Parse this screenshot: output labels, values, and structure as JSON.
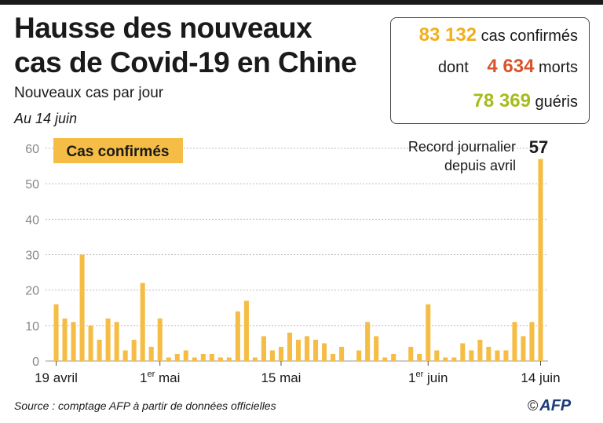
{
  "title": "Hausse des nouveaux\ncas de Covid-19 en Chine",
  "subtitle": "Nouveaux cas par jour",
  "date_note": "Au 14 juin",
  "stats": {
    "confirmed_value": "83 132",
    "confirmed_label": "cas confirmés",
    "deaths_prefix": "dont",
    "deaths_value": "4 634",
    "deaths_label": "morts",
    "recovered_value": "78 369",
    "recovered_label": "guéris"
  },
  "colors": {
    "bar": "#f5bd45",
    "confirmed": "#f2ae1c",
    "deaths": "#d9532c",
    "recovered": "#a7bb1c",
    "grid": "#bbbbbb",
    "text": "#1a1a1a"
  },
  "source": "Source : comptage AFP à partir de données officielles",
  "credit": "AFP",
  "chart_data": {
    "type": "bar",
    "legend": "Cas confirmés",
    "annotation": {
      "text": "Record journalier\ndepuis avril",
      "value_label": "57"
    },
    "yticks": [
      0,
      10,
      20,
      30,
      40,
      50,
      60
    ],
    "ylim": [
      0,
      62
    ],
    "xtick_labels": [
      {
        "index": 0,
        "text": "19 avril"
      },
      {
        "index": 12,
        "text": "1",
        "sup": "er",
        "rest": " mai"
      },
      {
        "index": 26,
        "text": "15 mai"
      },
      {
        "index": 43,
        "text": "1",
        "sup": "er",
        "rest": " juin"
      },
      {
        "index": 56,
        "text": "14 juin"
      }
    ],
    "values": [
      16,
      12,
      11,
      30,
      10,
      6,
      12,
      11,
      3,
      6,
      22,
      4,
      12,
      1,
      2,
      3,
      1,
      2,
      2,
      1,
      1,
      14,
      17,
      1,
      7,
      3,
      4,
      8,
      6,
      7,
      6,
      5,
      2,
      4,
      0,
      3,
      11,
      7,
      1,
      2,
      0,
      4,
      2,
      16,
      3,
      1,
      1,
      5,
      3,
      6,
      4,
      3,
      3,
      11,
      7,
      11,
      57
    ]
  }
}
